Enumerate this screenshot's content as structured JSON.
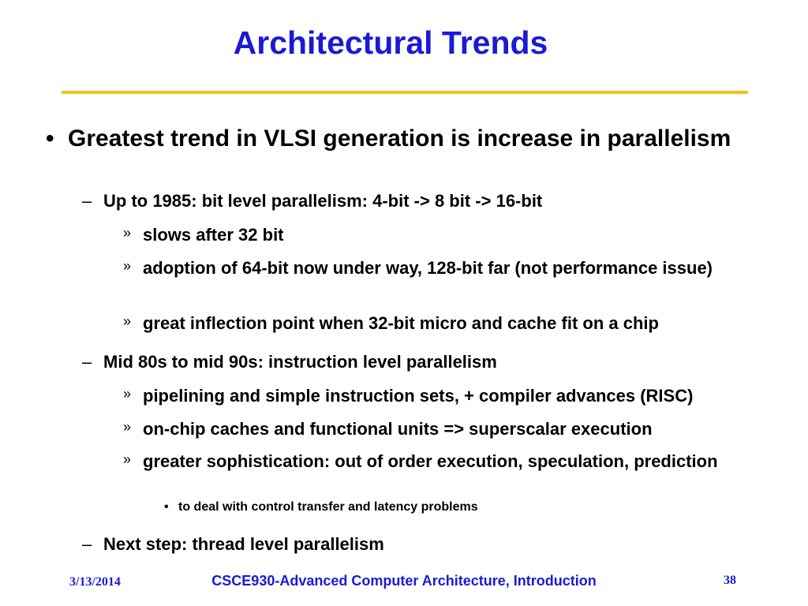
{
  "slide": {
    "title": "Architectural Trends",
    "colors": {
      "title": "#1a1ad6",
      "rule": "#f4c21c",
      "footer": "#1a1ad6"
    },
    "markers": {
      "level1": "•",
      "level2": "–",
      "level3": "»",
      "level4": "•"
    },
    "bullet": "Greatest trend in VLSI generation is increase in parallelism",
    "sub1": {
      "text": "Up to 1985: bit level parallelism: 4-bit -> 8 bit -> 16-bit",
      "items": [
        "slows after 32 bit",
        "adoption of 64-bit now under way, 128-bit far (not performance issue)",
        "great inflection point when 32-bit micro and cache fit on a chip"
      ]
    },
    "sub2": {
      "text": "Mid 80s to mid 90s: instruction level parallelism",
      "items": [
        "pipelining and simple instruction sets, + compiler advances (RISC)",
        "on-chip caches and functional units => superscalar execution",
        "greater sophistication: out of order execution, speculation, prediction"
      ],
      "subitem": "to deal with control transfer and latency problems"
    },
    "sub3": {
      "text": "Next step: thread level parallelism"
    },
    "footer": {
      "date": "3/13/2014",
      "course": "CSCE930-Advanced Computer Architecture, Introduction",
      "page": "38"
    }
  }
}
